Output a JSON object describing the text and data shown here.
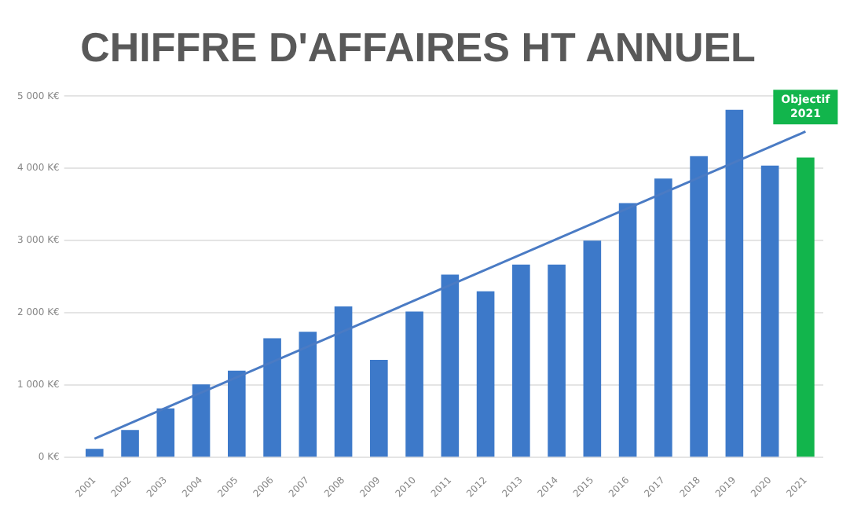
{
  "chart_data": {
    "type": "bar",
    "title": "CHIFFRE D'AFFAIRES HT ANNUEL",
    "categories": [
      "2001",
      "2002",
      "2003",
      "2004",
      "2005",
      "2006",
      "2007",
      "2008",
      "2009",
      "2010",
      "2011",
      "2012",
      "2013",
      "2014",
      "2015",
      "2016",
      "2017",
      "2018",
      "2019",
      "2020",
      "2021"
    ],
    "series": [
      {
        "values": [
          120,
          380,
          680,
          1010,
          1200,
          1650,
          1740,
          2090,
          1350,
          2020,
          2530,
          2300,
          2670,
          2670,
          3000,
          3520,
          3860,
          4170,
          4810,
          4040,
          4150
        ],
        "colors": [
          "#3d79c9",
          "#3d79c9",
          "#3d79c9",
          "#3d79c9",
          "#3d79c9",
          "#3d79c9",
          "#3d79c9",
          "#3d79c9",
          "#3d79c9",
          "#3d79c9",
          "#3d79c9",
          "#3d79c9",
          "#3d79c9",
          "#3d79c9",
          "#3d79c9",
          "#3d79c9",
          "#3d79c9",
          "#3d79c9",
          "#3d79c9",
          "#3d79c9",
          "#12b54c"
        ]
      },
      {
        "type": "line",
        "values": [
          260,
          null,
          null,
          null,
          null,
          null,
          null,
          null,
          null,
          null,
          null,
          null,
          null,
          null,
          null,
          null,
          null,
          null,
          null,
          null,
          4510
        ],
        "color": "#4a7bc4"
      }
    ],
    "ylim": [
      0,
      5000
    ],
    "yticks": [
      {
        "value": 0,
        "label": "0 K€"
      },
      {
        "value": 1000,
        "label": "1 000 K€"
      },
      {
        "value": 2000,
        "label": "2 000 K€"
      },
      {
        "value": 3000,
        "label": "3 000 K€"
      },
      {
        "value": 4000,
        "label": "4 000 K€"
      },
      {
        "value": 5000,
        "label": "5 000 K€"
      }
    ],
    "grid": "y",
    "legend": false,
    "annotations": [
      {
        "text": "Objectif 2021",
        "x": "2021",
        "y": 4850
      }
    ]
  }
}
